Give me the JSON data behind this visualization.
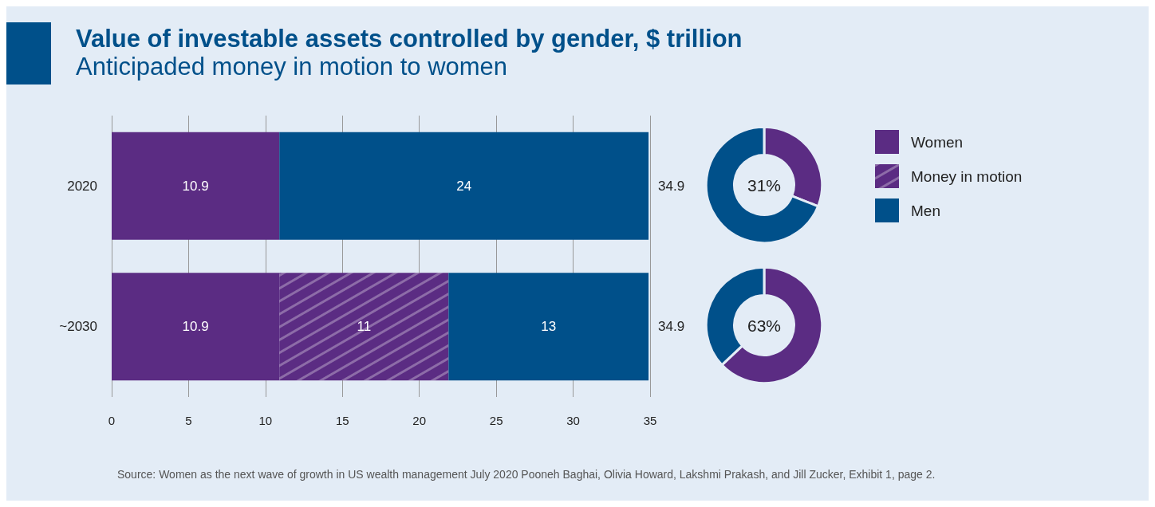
{
  "chart_data": [
    {
      "type": "bar",
      "title": "Value of investable assets controlled by gender, $ trillion",
      "subtitle": "Anticipaded money in motion to women",
      "orientation": "horizontal",
      "stacked": true,
      "categories": [
        "2020",
        "~2030"
      ],
      "series": [
        {
          "name": "Women",
          "color": "#5b2c83",
          "values": [
            10.9,
            10.9
          ]
        },
        {
          "name": "Money in motion",
          "color": "#5b2c83",
          "values": [
            null,
            11
          ]
        },
        {
          "name": "Men",
          "color": "#00508a",
          "values": [
            24,
            13
          ]
        }
      ],
      "data_labels": true,
      "totals": [
        "34.9",
        "34.9"
      ],
      "xlim": [
        0,
        35
      ],
      "xticks": [
        0,
        5,
        10,
        15,
        20,
        25,
        30,
        35
      ],
      "grid": "x",
      "legend": "right",
      "annotations": [
        "Source: Women as the next wave of growth in US wealth management July 2020 Pooneh Baghai, Olivia Howard, Lakshmi Prakash, and Jill Zucker, Exhibit 1, page 2."
      ]
    },
    {
      "type": "donut",
      "categories": [
        null,
        null
      ],
      "values": [
        31,
        69
      ],
      "colors": [
        "#5b2c83",
        "#00508a"
      ],
      "value_labels": [
        "31%",
        null
      ]
    },
    {
      "type": "donut",
      "categories": [
        null,
        null
      ],
      "values": [
        63,
        37
      ],
      "colors": [
        "#5b2c83",
        "#00508a"
      ],
      "value_labels": [
        "63%",
        null
      ]
    }
  ]
}
